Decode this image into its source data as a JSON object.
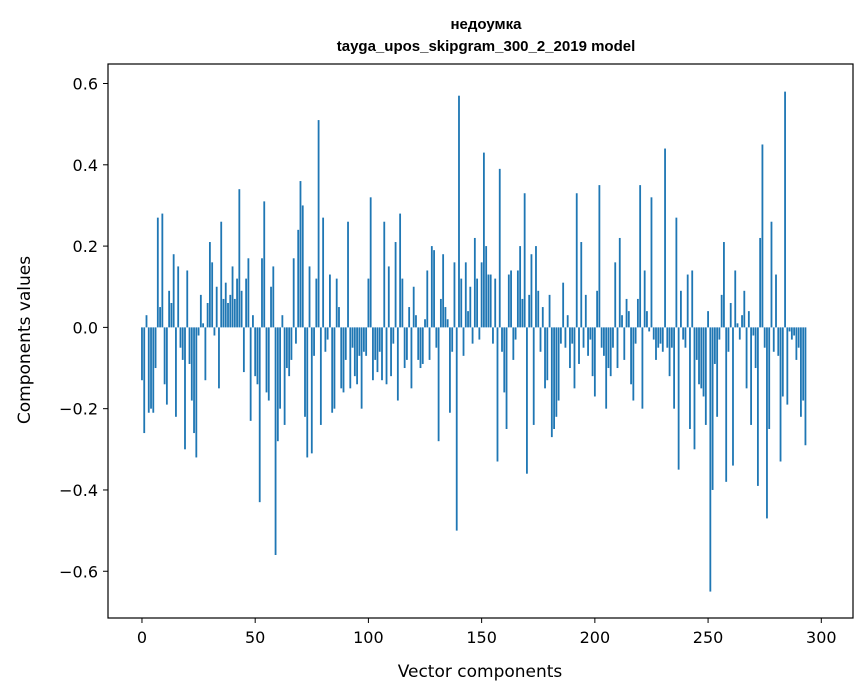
{
  "chart_data": {
    "type": "bar",
    "title": "недоумка",
    "subtitle": "tayga_upos_skipgram_300_2_2019 model",
    "xlabel": "Vector components",
    "ylabel": "Components values",
    "xlim": [
      -15,
      314
    ],
    "ylim": [
      -0.715,
      0.648
    ],
    "xticks": [
      0,
      50,
      100,
      150,
      200,
      250,
      300
    ],
    "xtick_labels": [
      "0",
      "50",
      "100",
      "150",
      "200",
      "250",
      "300"
    ],
    "yticks": [
      -0.6,
      -0.4,
      -0.2,
      0.0,
      0.2,
      0.4,
      0.6
    ],
    "ytick_labels": [
      "−0.6",
      "−0.4",
      "−0.2",
      "0.0",
      "0.2",
      "0.4",
      "0.6"
    ],
    "grid": false,
    "bar_color": "#1f77b4",
    "values": [
      -0.13,
      -0.26,
      0.03,
      -0.21,
      -0.2,
      -0.21,
      -0.1,
      0.27,
      0.05,
      0.28,
      -0.14,
      -0.19,
      0.09,
      0.06,
      0.18,
      -0.22,
      0.15,
      -0.05,
      -0.08,
      -0.3,
      0.14,
      -0.09,
      -0.18,
      -0.26,
      -0.32,
      -0.02,
      0.08,
      0.01,
      -0.13,
      0.06,
      0.21,
      0.16,
      -0.02,
      0.1,
      -0.15,
      0.26,
      0.07,
      0.11,
      0.06,
      0.08,
      0.15,
      0.07,
      0.12,
      0.34,
      0.09,
      -0.11,
      0.12,
      0.17,
      -0.23,
      0.03,
      -0.12,
      -0.14,
      -0.43,
      0.17,
      0.31,
      -0.16,
      -0.18,
      0.1,
      0.15,
      -0.56,
      -0.28,
      -0.2,
      0.03,
      -0.24,
      -0.1,
      -0.12,
      -0.08,
      0.17,
      -0.04,
      0.24,
      0.36,
      0.3,
      -0.22,
      -0.32,
      0.15,
      -0.31,
      -0.07,
      0.12,
      0.51,
      -0.24,
      0.27,
      -0.06,
      -0.03,
      0.13,
      -0.21,
      -0.2,
      0.12,
      0.05,
      -0.15,
      -0.16,
      -0.08,
      0.26,
      -0.15,
      -0.05,
      -0.12,
      -0.14,
      -0.07,
      -0.2,
      -0.06,
      -0.07,
      0.12,
      0.32,
      -0.13,
      -0.08,
      -0.11,
      -0.06,
      -0.13,
      0.26,
      -0.14,
      0.15,
      -0.12,
      -0.04,
      0.21,
      -0.18,
      0.28,
      0.12,
      -0.1,
      -0.08,
      0.05,
      -0.15,
      0.1,
      0.03,
      -0.08,
      -0.1,
      -0.09,
      0.02,
      0.14,
      -0.08,
      0.2,
      0.19,
      -0.05,
      -0.28,
      0.07,
      0.18,
      0.05,
      0.02,
      -0.21,
      -0.06,
      0.16,
      -0.5,
      0.57,
      0.12,
      -0.07,
      0.16,
      0.04,
      0.1,
      -0.04,
      0.22,
      0.12,
      -0.03,
      0.16,
      0.43,
      0.2,
      0.13,
      0.13,
      -0.04,
      0.12,
      -0.33,
      0.39,
      -0.06,
      -0.16,
      -0.25,
      0.13,
      0.14,
      -0.08,
      -0.03,
      0.14,
      0.2,
      0.07,
      0.33,
      -0.36,
      0.08,
      0.18,
      -0.24,
      0.2,
      0.09,
      -0.06,
      0.05,
      -0.15,
      -0.13,
      0.08,
      -0.27,
      -0.25,
      -0.22,
      -0.18,
      -0.04,
      0.11,
      -0.05,
      0.03,
      -0.1,
      -0.04,
      -0.15,
      0.33,
      -0.09,
      0.21,
      -0.05,
      0.08,
      -0.07,
      -0.03,
      -0.12,
      -0.17,
      0.09,
      0.35,
      -0.05,
      -0.07,
      -0.2,
      -0.1,
      -0.12,
      -0.05,
      0.16,
      -0.1,
      0.22,
      0.03,
      -0.08,
      0.07,
      0.04,
      -0.14,
      -0.18,
      -0.04,
      0.07,
      0.35,
      -0.2,
      0.14,
      0.04,
      -0.01,
      0.32,
      -0.03,
      -0.08,
      -0.05,
      -0.04,
      -0.06,
      0.44,
      -0.05,
      -0.12,
      -0.05,
      -0.2,
      0.27,
      -0.35,
      0.09,
      -0.03,
      -0.05,
      0.13,
      -0.25,
      0.14,
      -0.3,
      -0.08,
      -0.14,
      -0.15,
      -0.17,
      -0.24,
      0.04,
      -0.65,
      -0.4,
      -0.09,
      -0.22,
      -0.03,
      0.08,
      0.21,
      -0.38,
      -0.06,
      0.06,
      -0.34,
      0.14,
      0.01,
      -0.03,
      0.03,
      0.09,
      -0.15,
      0.04,
      -0.24,
      -0.02,
      -0.1,
      -0.39,
      0.22,
      0.45,
      -0.05,
      -0.47,
      -0.25,
      0.26,
      -0.06,
      0.13,
      -0.07,
      -0.33,
      -0.17,
      0.58,
      -0.19,
      -0.01,
      -0.03,
      -0.02,
      -0.08,
      -0.05,
      -0.22,
      -0.18,
      -0.29
    ]
  }
}
